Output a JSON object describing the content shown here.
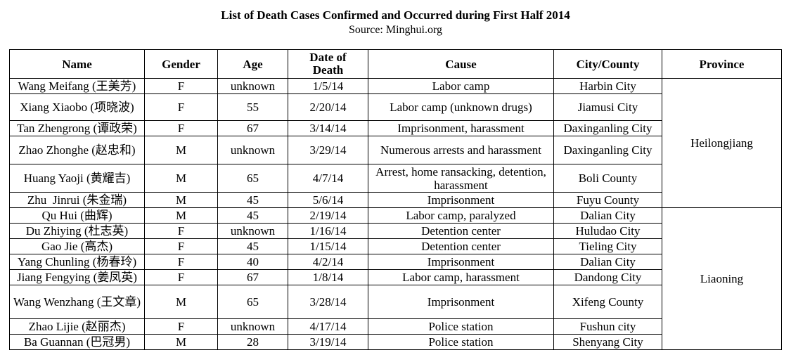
{
  "title": "List of Death Cases Confirmed and Occurred during First Half 2014",
  "subtitle": "Source: Minghui.org",
  "headers": {
    "name": "Name",
    "gender": "Gender",
    "age": "Age",
    "date_line1": "Date of",
    "date_line2": "Death",
    "cause": "Cause",
    "city": "City/County",
    "province": "Province"
  },
  "provinces": [
    "Heilongjiang",
    "Liaoning"
  ],
  "rows": [
    {
      "name": "Wang Meifang (王美芳)",
      "gender": "F",
      "age": "unknown",
      "date": "1/5/14",
      "cause": "Labor camp",
      "city": "Harbin City"
    },
    {
      "name": "Xiang Xiaobo (项晓波)",
      "gender": "F",
      "age": "55",
      "date": "2/20/14",
      "cause": "Labor camp (unknown drugs)",
      "city": "Jiamusi City"
    },
    {
      "name": "Tan Zhengrong (谭政荣)",
      "gender": "F",
      "age": "67",
      "date": "3/14/14",
      "cause": "Imprisonment, harassment",
      "city": "Daxinganling City"
    },
    {
      "name": "Zhao Zhonghe (赵忠和)",
      "gender": "M",
      "age": "unknown",
      "date": "3/29/14",
      "cause": "Numerous arrests and harassment",
      "city": "Daxinganling City"
    },
    {
      "name": "Huang Yaoji (黄耀吉)",
      "gender": "M",
      "age": "65",
      "date": "4/7/14",
      "cause": "Arrest, home ransacking, detention, harassment",
      "city": "Boli County"
    },
    {
      "name": "Zhu  Jinrui (朱金瑞)",
      "gender": "M",
      "age": "45",
      "date": "5/6/14",
      "cause": "Imprisonment",
      "city": "Fuyu County"
    },
    {
      "name": "Qu Hui (曲辉)",
      "gender": "M",
      "age": "45",
      "date": "2/19/14",
      "cause": "Labor camp, paralyzed",
      "city": "Dalian City"
    },
    {
      "name": "Du Zhiying (杜志英)",
      "gender": "F",
      "age": "unknown",
      "date": "1/16/14",
      "cause": "Detention center",
      "city": "Huludao City"
    },
    {
      "name": "Gao Jie (高杰)",
      "gender": "F",
      "age": "45",
      "date": "1/15/14",
      "cause": "Detention center",
      "city": "Tieling City"
    },
    {
      "name": "Yang Chunling (杨春玲)",
      "gender": "F",
      "age": "40",
      "date": "4/2/14",
      "cause": "Imprisonment",
      "city": "Dalian City"
    },
    {
      "name": "Jiang Fengying (姜凤英)",
      "gender": "F",
      "age": "67",
      "date": "1/8/14",
      "cause": "Labor camp, harassment",
      "city": "Dandong City"
    },
    {
      "name": "Wang Wenzhang (王文章)",
      "gender": "M",
      "age": "65",
      "date": "3/28/14",
      "cause": "Imprisonment",
      "city": "Xifeng County"
    },
    {
      "name": "Zhao Lijie (赵丽杰)",
      "gender": "F",
      "age": "unknown",
      "date": "4/17/14",
      "cause": "Police station",
      "city": "Fushun city"
    },
    {
      "name": "Ba Guannan (巴冠男)",
      "gender": "M",
      "age": "28",
      "date": "3/19/14",
      "cause": "Police station",
      "city": "Shenyang City"
    }
  ]
}
